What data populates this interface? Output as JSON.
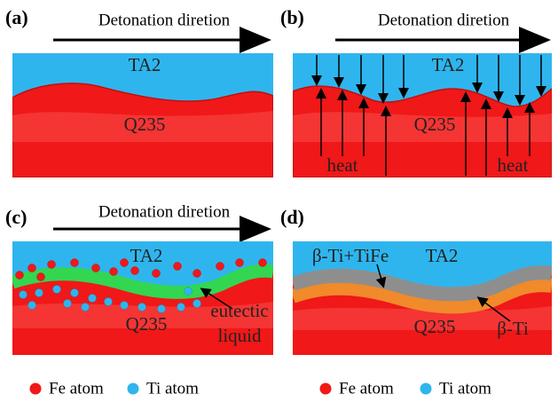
{
  "panels": [
    {
      "label": "(a)",
      "direction": "Detonation diretion",
      "top_layer": "TA2",
      "bottom_layer": "Q235"
    },
    {
      "label": "(b)",
      "direction": "Detonation diretion",
      "top_layer": "TA2",
      "bottom_layer": "Q235",
      "heat_labels": [
        "heat",
        "heat"
      ]
    },
    {
      "label": "(c)",
      "direction": "Detonation diretion",
      "top_layer": "TA2",
      "bottom_layer": "Q235",
      "annotation": [
        "eutectic",
        "liquid"
      ],
      "legend": [
        "Fe atom",
        "Ti atom"
      ]
    },
    {
      "label": "(d)",
      "top_layer": "TA2",
      "bottom_layer": "Q235",
      "phases": [
        "β-Ti+TiFe",
        "β-Ti"
      ],
      "legend": [
        "Fe atom",
        "Ti atom"
      ]
    }
  ]
}
